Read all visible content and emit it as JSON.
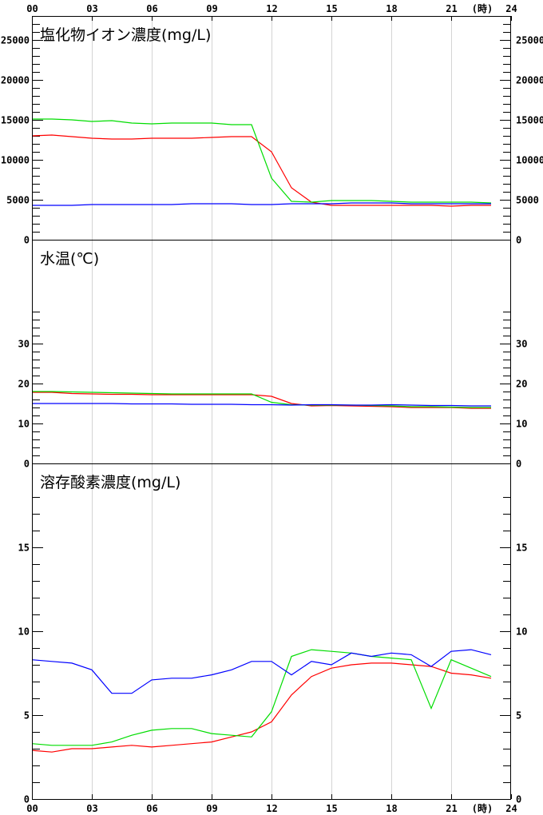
{
  "chart_data": {
    "type": "line",
    "x_ticks": [
      "00",
      "03",
      "06",
      "09",
      "12",
      "15",
      "18",
      "21",
      "24"
    ],
    "x_unit": "(時)",
    "x": [
      0,
      1,
      2,
      3,
      4,
      5,
      6,
      7,
      8,
      9,
      10,
      11,
      12,
      13,
      14,
      15,
      16,
      17,
      18,
      19,
      20,
      21,
      22,
      23
    ],
    "xlim": [
      0,
      24
    ],
    "series_colors": [
      "#ff0000",
      "#00dd00",
      "#0000ff"
    ],
    "panels": [
      {
        "title": "塩化物イオン濃度(mg/L)",
        "ylim": [
          0,
          28000
        ],
        "yticks": [
          0,
          5000,
          10000,
          15000,
          20000,
          25000
        ],
        "minor_step": 1000,
        "minor_from": 1000,
        "series": [
          {
            "values": [
              13000,
              13100,
              12900,
              12700,
              12600,
              12600,
              12700,
              12700,
              12700,
              12800,
              12900,
              12900,
              11000,
              6500,
              4700,
              4300,
              4300,
              4300,
              4300,
              4300,
              4300,
              4200,
              4300,
              4300
            ]
          },
          {
            "values": [
              15100,
              15100,
              15000,
              14800,
              14900,
              14600,
              14500,
              14600,
              14600,
              14600,
              14400,
              14400,
              7700,
              4800,
              4700,
              4900,
              4900,
              4900,
              4800,
              4700,
              4700,
              4700,
              4700,
              4600
            ]
          },
          {
            "values": [
              4300,
              4300,
              4300,
              4400,
              4400,
              4400,
              4400,
              4400,
              4500,
              4500,
              4500,
              4400,
              4400,
              4500,
              4500,
              4500,
              4600,
              4600,
              4600,
              4500,
              4500,
              4500,
              4500,
              4500
            ]
          }
        ]
      },
      {
        "title": "水温(℃)",
        "ylim": [
          0,
          56
        ],
        "yticks": [
          0,
          10,
          20,
          30
        ],
        "minor_step": 2,
        "minor_from": 2,
        "minor_to": 38,
        "series": [
          {
            "values": [
              17.8,
              17.8,
              17.5,
              17.4,
              17.3,
              17.3,
              17.2,
              17.2,
              17.2,
              17.2,
              17.2,
              17.2,
              16.8,
              15.0,
              14.4,
              14.5,
              14.4,
              14.3,
              14.2,
              14.0,
              14.0,
              14.0,
              13.8,
              13.8
            ]
          },
          {
            "values": [
              18.0,
              18.0,
              17.9,
              17.8,
              17.7,
              17.6,
              17.5,
              17.4,
              17.4,
              17.4,
              17.4,
              17.4,
              15.3,
              14.7,
              14.6,
              14.6,
              14.6,
              14.5,
              14.4,
              14.2,
              14.2,
              14.1,
              14.0,
              14.0
            ]
          },
          {
            "values": [
              15.0,
              15.0,
              15.0,
              15.0,
              15.0,
              14.9,
              14.9,
              14.9,
              14.8,
              14.8,
              14.8,
              14.7,
              14.7,
              14.6,
              14.7,
              14.7,
              14.6,
              14.6,
              14.7,
              14.6,
              14.5,
              14.5,
              14.4,
              14.4
            ]
          }
        ]
      },
      {
        "title": "溶存酸素濃度(mg/L)",
        "ylim": [
          0,
          20
        ],
        "yticks": [
          0,
          5,
          10,
          15
        ],
        "minor_step": 1,
        "minor_from": 1,
        "minor_to": 18,
        "series": [
          {
            "values": [
              2.9,
              2.8,
              3.0,
              3.0,
              3.1,
              3.2,
              3.1,
              3.2,
              3.3,
              3.4,
              3.7,
              4.0,
              4.6,
              6.2,
              7.3,
              7.8,
              8.0,
              8.1,
              8.1,
              8.0,
              7.9,
              7.5,
              7.4,
              7.2
            ]
          },
          {
            "values": [
              3.3,
              3.2,
              3.2,
              3.2,
              3.4,
              3.8,
              4.1,
              4.2,
              4.2,
              3.9,
              3.8,
              3.7,
              5.2,
              8.5,
              8.9,
              8.8,
              8.7,
              8.5,
              8.4,
              8.3,
              5.4,
              8.3,
              7.8,
              7.3
            ]
          },
          {
            "values": [
              8.3,
              8.2,
              8.1,
              7.7,
              6.3,
              6.3,
              7.1,
              7.2,
              7.2,
              7.4,
              7.7,
              8.2,
              8.2,
              7.4,
              8.2,
              8.0,
              8.7,
              8.5,
              8.7,
              8.6,
              7.9,
              8.8,
              8.9,
              8.6
            ]
          }
        ]
      }
    ]
  }
}
